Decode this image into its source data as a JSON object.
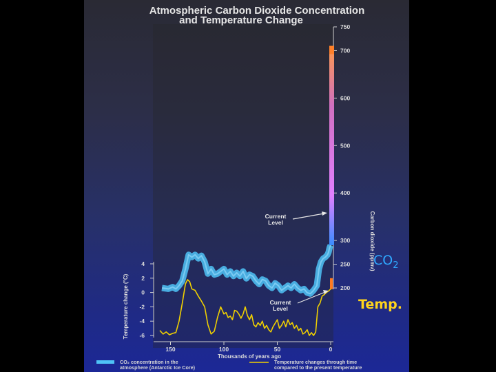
{
  "chart_data": {
    "type": "line",
    "title_line1": "Atmospheric Carbon Dioxide Concentration",
    "title_line2": "and Temperature Change",
    "xlabel": "Thousands of years ago",
    "ylabel_left": "Temperature change (°C)",
    "ylabel_right": "Carbon dioxide (ppmv)",
    "x_ticks": [
      "150",
      "100",
      "50",
      "0"
    ],
    "x_tick_values": [
      150,
      100,
      50,
      0
    ],
    "xlim": [
      160,
      0
    ],
    "y_left_ticks": [
      "4",
      "2",
      "0",
      "-2",
      "-4",
      "-6"
    ],
    "y_left_values": [
      4,
      2,
      0,
      -2,
      -4,
      -6
    ],
    "ylim_left": [
      -7,
      5
    ],
    "y_right_ticks": [
      "750",
      "700",
      "600",
      "500",
      "400",
      "300",
      "250",
      "200"
    ],
    "y_right_values": [
      750,
      700,
      600,
      500,
      400,
      300,
      250,
      200
    ],
    "ylim_right": [
      180,
      760
    ],
    "series": [
      {
        "name": "CO₂ concentration in the atmosphere (Antarctic Ice Core)",
        "axis": "right",
        "color": "#4fc3f7",
        "x": [
          158,
          152,
          148,
          145,
          142,
          139,
          136,
          133,
          130,
          127,
          124,
          121,
          118,
          115,
          112,
          109,
          106,
          103,
          100,
          97,
          94,
          91,
          88,
          85,
          82,
          79,
          76,
          73,
          70,
          67,
          64,
          61,
          58,
          55,
          52,
          49,
          46,
          43,
          40,
          37,
          34,
          31,
          28,
          25,
          22,
          19,
          16,
          13,
          11,
          9,
          7,
          5,
          3,
          2,
          1,
          0
        ],
        "values": [
          200,
          198,
          202,
          198,
          205,
          215,
          240,
          270,
          265,
          270,
          262,
          268,
          255,
          230,
          240,
          228,
          230,
          235,
          240,
          228,
          235,
          225,
          232,
          225,
          235,
          220,
          228,
          225,
          215,
          208,
          218,
          215,
          205,
          200,
          210,
          205,
          195,
          200,
          205,
          200,
          208,
          200,
          195,
          198,
          190,
          188,
          195,
          205,
          240,
          255,
          262,
          265,
          270,
          275,
          285,
          290
        ]
      },
      {
        "name": "Temperature changes through time compared to the present temperature",
        "axis": "left",
        "color": "#f0d000",
        "x": [
          160,
          157,
          154,
          151,
          148,
          145,
          142,
          139,
          136,
          134,
          132,
          130,
          127,
          124,
          121,
          118,
          115,
          112,
          109,
          106,
          103,
          100,
          98,
          96,
          94,
          92,
          90,
          88,
          86,
          84,
          82,
          80,
          78,
          76,
          74,
          72,
          70,
          68,
          66,
          64,
          62,
          60,
          58,
          56,
          54,
          52,
          50,
          48,
          46,
          44,
          42,
          40,
          38,
          36,
          34,
          32,
          30,
          28,
          26,
          24,
          22,
          20,
          18,
          16,
          14,
          12,
          10,
          8,
          6,
          4,
          2,
          0
        ],
        "values": [
          -5.3,
          -5.8,
          -5.5,
          -5.9,
          -5.7,
          -5.6,
          -4.0,
          -1.5,
          1.2,
          1.8,
          1.5,
          0.5,
          0.3,
          -0.5,
          -1.2,
          -2.0,
          -4.5,
          -5.8,
          -5.4,
          -3.5,
          -2.0,
          -3.0,
          -2.8,
          -3.5,
          -3.3,
          -3.8,
          -2.5,
          -2.6,
          -3.0,
          -3.6,
          -3.0,
          -2.0,
          -3.2,
          -3.8,
          -3.1,
          -4.5,
          -4.8,
          -4.2,
          -4.6,
          -4.0,
          -5.0,
          -4.6,
          -5.2,
          -5.5,
          -4.8,
          -4.3,
          -3.8,
          -5.0,
          -4.6,
          -4.0,
          -4.8,
          -3.8,
          -4.5,
          -4.2,
          -5.0,
          -4.6,
          -5.3,
          -5.0,
          -5.8,
          -5.6,
          -5.2,
          -6.0,
          -5.6,
          -6.0,
          -5.5,
          -2.0,
          -1.5,
          -0.5,
          -0.3,
          0.0,
          0.2,
          0.5
        ]
      }
    ],
    "projection": {
      "color_low": "#ff7a20",
      "color_mid": "#e080ff",
      "color_high": "#ff9a4a",
      "range": [
        370,
        710
      ]
    },
    "annotations": {
      "current_level_co2": [
        "Current",
        "Level"
      ],
      "current_level_temp": [
        "Current",
        "Level"
      ]
    },
    "legend": {
      "co2_line1": "CO₂ concentration in the",
      "co2_line2": "atmosphere (Antarctic Ice Core)",
      "temp_line1": "Temperature changes through time",
      "temp_line2": "compared to the present temperature"
    },
    "side_labels": {
      "co2": "CO",
      "co2_sub": "2",
      "temp": "Temp."
    }
  }
}
